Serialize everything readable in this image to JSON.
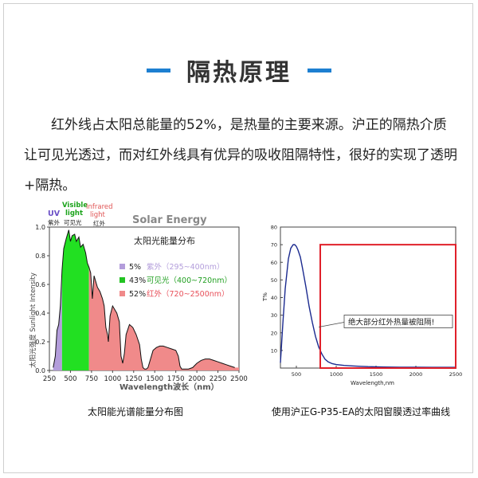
{
  "header": {
    "title": "隔热原理"
  },
  "intro": {
    "text": "红外线占太阳总能量的52%，是热量的主要来源。沪正的隔热介质让可见光透过，而对红外线具有优异的吸收阻隔特性，很好的实现了透明+隔热。"
  },
  "colors": {
    "accent": "#1d7fd1",
    "uv": "#b39ddb",
    "visible": "#22e022",
    "infrared": "#f08a8a",
    "curve": "#1b2a8f",
    "box": "#e0202a"
  },
  "chart_data": [
    {
      "type": "area",
      "title": "Solar Energy",
      "subtitle": "太阳光能量分布",
      "xlabel": "Wavelength波长（nm）",
      "ylabel": "太阳光强度 Sunlight Intensity",
      "xlim": [
        250,
        2500
      ],
      "ylim": [
        0,
        1.0
      ],
      "xticks": [
        250,
        500,
        750,
        1000,
        1250,
        1500,
        1750,
        2000,
        2250,
        2500
      ],
      "yticks": [
        0,
        0.2,
        0.4,
        0.6,
        0.8,
        1.0
      ],
      "band_labels": [
        {
          "en": "UV",
          "zh": "紫外"
        },
        {
          "en": "Visible light",
          "zh": "可见光"
        },
        {
          "en": "Infrared light",
          "zh": "红外"
        }
      ],
      "legend": [
        {
          "pct": "5%",
          "name": "紫外（295~400nm）"
        },
        {
          "pct": "43%",
          "name": "可见光（400~720nm）"
        },
        {
          "pct": "52%",
          "name": "红外（720~2500nm）"
        }
      ],
      "bands": [
        [
          295,
          400
        ],
        [
          400,
          720
        ],
        [
          720,
          2500
        ]
      ],
      "x": [
        295,
        320,
        340,
        360,
        380,
        400,
        420,
        450,
        480,
        500,
        520,
        550,
        570,
        600,
        620,
        650,
        680,
        700,
        720,
        740,
        760,
        780,
        800,
        820,
        850,
        880,
        900,
        920,
        940,
        950,
        970,
        1000,
        1050,
        1080,
        1100,
        1120,
        1140,
        1160,
        1200,
        1240,
        1280,
        1320,
        1340,
        1360,
        1380,
        1400,
        1420,
        1440,
        1480,
        1520,
        1560,
        1600,
        1650,
        1700,
        1750,
        1780,
        1800,
        1820,
        1850,
        1900,
        1950,
        2000,
        2050,
        2100,
        2150,
        2200,
        2250,
        2300,
        2350,
        2400,
        2450
      ],
      "values": [
        0.02,
        0.1,
        0.28,
        0.32,
        0.45,
        0.7,
        0.85,
        0.92,
        0.98,
        0.9,
        0.94,
        0.95,
        0.9,
        0.93,
        0.86,
        0.88,
        0.82,
        0.75,
        0.72,
        0.68,
        0.5,
        0.66,
        0.62,
        0.58,
        0.55,
        0.5,
        0.45,
        0.3,
        0.25,
        0.2,
        0.38,
        0.45,
        0.4,
        0.34,
        0.1,
        0.05,
        0.12,
        0.25,
        0.32,
        0.3,
        0.25,
        0.18,
        0.08,
        0.02,
        0.01,
        0.01,
        0.02,
        0.06,
        0.14,
        0.16,
        0.17,
        0.17,
        0.16,
        0.15,
        0.14,
        0.1,
        0.03,
        0.01,
        0.01,
        0.01,
        0.02,
        0.05,
        0.07,
        0.08,
        0.08,
        0.07,
        0.06,
        0.05,
        0.04,
        0.03,
        0.02
      ],
      "caption": "太阳能光谱能量分布图"
    },
    {
      "type": "line",
      "ylabel": "T%",
      "xlabel": "Wavelength,nm",
      "xlim": [
        300,
        2500
      ],
      "ylim": [
        0,
        80
      ],
      "xticks": [
        500,
        1000,
        1500,
        2000,
        2500
      ],
      "yticks": [
        10,
        20,
        30,
        40,
        50,
        60,
        70,
        80
      ],
      "x": [
        300,
        330,
        360,
        400,
        430,
        460,
        480,
        500,
        520,
        550,
        580,
        620,
        660,
        700,
        740,
        780,
        820,
        860,
        900,
        950,
        1000,
        1100,
        1200,
        1300,
        1400,
        1500,
        1600,
        1800,
        2000,
        2200,
        2400,
        2500
      ],
      "values": [
        3,
        25,
        45,
        62,
        68,
        70,
        70,
        69,
        67,
        63,
        56,
        46,
        35,
        26,
        18,
        12,
        8,
        5,
        3.5,
        2.5,
        2,
        1.5,
        1.2,
        1,
        0.8,
        0.7,
        0.6,
        0.5,
        0.5,
        0.4,
        0.4,
        0.4
      ],
      "highlight_box": {
        "x": [
          800,
          2500
        ],
        "y": [
          0,
          70
        ]
      },
      "annotation": {
        "text": "绝大部分红外热量被阻隔!",
        "x": 1100,
        "y": 26
      },
      "caption": "使用沪正G-P35-EA的太阳窗膜透过率曲线"
    }
  ]
}
